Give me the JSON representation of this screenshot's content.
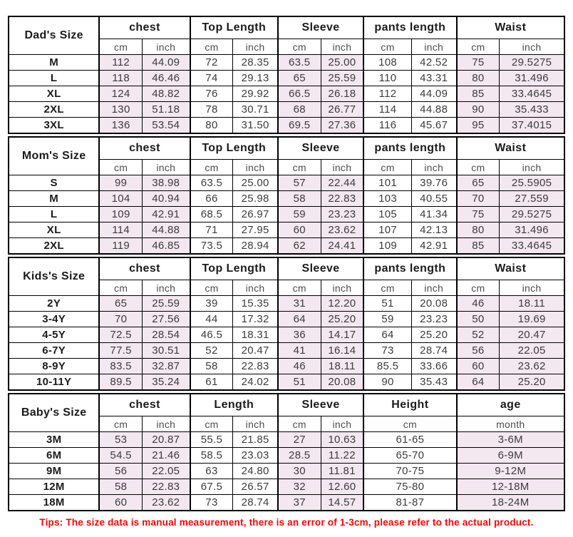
{
  "colors": {
    "shaded_cell": "#f3e7f0",
    "tips_text": "#ff0000",
    "border": "#000000"
  },
  "page": {
    "tips": "Tips: The size data is manual measurement, there is an error of 1-3cm, please refer to the actual product."
  },
  "tables": [
    {
      "id": "dads-size-table",
      "layout": "standard",
      "size_label": "Dad's Size",
      "groups": [
        {
          "label": "chest",
          "sub": [
            "cm",
            "inch"
          ],
          "shaded": true
        },
        {
          "label": "Top Length",
          "sub": [
            "cm",
            "inch"
          ],
          "shaded": false
        },
        {
          "label": "Sleeve",
          "sub": [
            "cm",
            "inch"
          ],
          "shaded": true
        },
        {
          "label": "pants length",
          "sub": [
            "cm",
            "inch"
          ],
          "shaded": false
        },
        {
          "label": "Waist",
          "sub": [
            "cm",
            "inch"
          ],
          "shaded": true
        }
      ],
      "rows": [
        {
          "size": "M",
          "cells": [
            "112",
            "44.09",
            "72",
            "28.35",
            "63.5",
            "25.00",
            "108",
            "42.52",
            "75",
            "29.5275"
          ]
        },
        {
          "size": "L",
          "cells": [
            "118",
            "46.46",
            "74",
            "29.13",
            "65",
            "25.59",
            "110",
            "43.31",
            "80",
            "31.496"
          ]
        },
        {
          "size": "XL",
          "cells": [
            "124",
            "48.82",
            "76",
            "29.92",
            "66.5",
            "26.18",
            "112",
            "44.09",
            "85",
            "33.4645"
          ]
        },
        {
          "size": "2XL",
          "cells": [
            "130",
            "51.18",
            "78",
            "30.71",
            "68",
            "26.77",
            "114",
            "44.88",
            "90",
            "35.433"
          ]
        },
        {
          "size": "3XL",
          "cells": [
            "136",
            "53.54",
            "80",
            "31.50",
            "69.5",
            "27.36",
            "116",
            "45.67",
            "95",
            "37.4015"
          ]
        }
      ]
    },
    {
      "id": "moms-size-table",
      "layout": "standard",
      "size_label": "Mom's Size",
      "groups": [
        {
          "label": "chest",
          "sub": [
            "cm",
            "inch"
          ],
          "shaded": true
        },
        {
          "label": "Top Length",
          "sub": [
            "cm",
            "inch"
          ],
          "shaded": false
        },
        {
          "label": "Sleeve",
          "sub": [
            "cm",
            "inch"
          ],
          "shaded": true
        },
        {
          "label": "pants length",
          "sub": [
            "cm",
            "inch"
          ],
          "shaded": false
        },
        {
          "label": "Waist",
          "sub": [
            "cm",
            "inch"
          ],
          "shaded": true
        }
      ],
      "rows": [
        {
          "size": "S",
          "cells": [
            "99",
            "38.98",
            "63.5",
            "25.00",
            "57",
            "22.44",
            "101",
            "39.76",
            "65",
            "25.5905"
          ]
        },
        {
          "size": "M",
          "cells": [
            "104",
            "40.94",
            "66",
            "25.98",
            "58",
            "22.83",
            "103",
            "40.55",
            "70",
            "27.559"
          ]
        },
        {
          "size": "L",
          "cells": [
            "109",
            "42.91",
            "68.5",
            "26.97",
            "59",
            "23.23",
            "105",
            "41.34",
            "75",
            "29.5275"
          ]
        },
        {
          "size": "XL",
          "cells": [
            "114",
            "44.88",
            "71",
            "27.95",
            "60",
            "23.62",
            "107",
            "42.13",
            "80",
            "31.496"
          ]
        },
        {
          "size": "2XL",
          "cells": [
            "119",
            "46.85",
            "73.5",
            "28.94",
            "62",
            "24.41",
            "109",
            "42.91",
            "85",
            "33.4645"
          ]
        }
      ]
    },
    {
      "id": "kids-size-table",
      "layout": "standard",
      "size_label": "Kids's Size",
      "groups": [
        {
          "label": "chest",
          "sub": [
            "cm",
            "inch"
          ],
          "shaded": true
        },
        {
          "label": "Top Length",
          "sub": [
            "cm",
            "inch"
          ],
          "shaded": false
        },
        {
          "label": "Sleeve",
          "sub": [
            "cm",
            "inch"
          ],
          "shaded": true
        },
        {
          "label": "pants length",
          "sub": [
            "cm",
            "inch"
          ],
          "shaded": false
        },
        {
          "label": "Waist",
          "sub": [
            "cm",
            "inch"
          ],
          "shaded": true
        }
      ],
      "rows": [
        {
          "size": "2Y",
          "cells": [
            "65",
            "25.59",
            "39",
            "15.35",
            "31",
            "12.20",
            "51",
            "20.08",
            "46",
            "18.11"
          ]
        },
        {
          "size": "3-4Y",
          "cells": [
            "70",
            "27.56",
            "44",
            "17.32",
            "64",
            "25.20",
            "59",
            "23.23",
            "50",
            "19.69"
          ]
        },
        {
          "size": "4-5Y",
          "cells": [
            "72.5",
            "28.54",
            "46.5",
            "18.31",
            "36",
            "14.17",
            "64",
            "25.20",
            "52",
            "20.47"
          ]
        },
        {
          "size": "6-7Y",
          "cells": [
            "77.5",
            "30.51",
            "52",
            "20.47",
            "41",
            "16.14",
            "73",
            "28.74",
            "56",
            "22.05"
          ]
        },
        {
          "size": "8-9Y",
          "cells": [
            "83.5",
            "32.87",
            "58",
            "22.83",
            "46",
            "18.11",
            "85.5",
            "33.66",
            "60",
            "23.62"
          ]
        },
        {
          "size": "10-11Y",
          "cells": [
            "89.5",
            "35.24",
            "61",
            "24.02",
            "51",
            "20.08",
            "90",
            "35.43",
            "64",
            "25.20"
          ]
        }
      ]
    },
    {
      "id": "babys-size-table",
      "layout": "baby",
      "size_label": "Baby's Size",
      "groups": [
        {
          "label": "chest",
          "sub": [
            "cm",
            "inch"
          ],
          "shaded": true
        },
        {
          "label": "Length",
          "sub": [
            "cm",
            "inch"
          ],
          "shaded": false
        },
        {
          "label": "Sleeve",
          "sub": [
            "cm",
            "inch"
          ],
          "shaded": true
        },
        {
          "label": "Height",
          "sub": [
            "cm"
          ],
          "shaded": false
        },
        {
          "label": "age",
          "sub": [
            "month"
          ],
          "shaded": true
        }
      ],
      "rows": [
        {
          "size": "3M",
          "cells": [
            "53",
            "20.87",
            "55.5",
            "21.85",
            "27",
            "10.63",
            "61-65",
            "3-6M"
          ]
        },
        {
          "size": "6M",
          "cells": [
            "54.5",
            "21.46",
            "58.5",
            "23.03",
            "28.5",
            "11.22",
            "65-70",
            "6-9M"
          ]
        },
        {
          "size": "9M",
          "cells": [
            "56",
            "22.05",
            "63",
            "24.80",
            "30",
            "11.81",
            "70-75",
            "9-12M"
          ]
        },
        {
          "size": "12M",
          "cells": [
            "58",
            "22.83",
            "67.5",
            "26.57",
            "32",
            "12.60",
            "75-80",
            "12-18M"
          ]
        },
        {
          "size": "18M",
          "cells": [
            "60",
            "23.62",
            "73",
            "28.74",
            "37",
            "14.57",
            "81-87",
            "18-24M"
          ]
        }
      ]
    }
  ]
}
